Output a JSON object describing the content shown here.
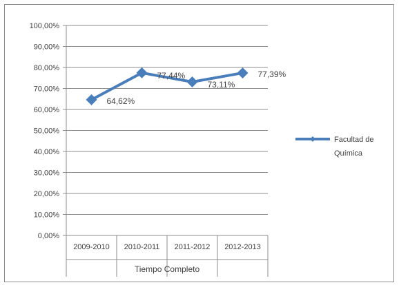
{
  "chart_data": {
    "type": "line",
    "categories": [
      "2009-2010",
      "2010-2011",
      "2011-2012",
      "2012-2013"
    ],
    "group_label": "Tiempo Completo",
    "series": [
      {
        "name": "Facultad de Química",
        "name_lines": [
          "Facultad de",
          "Química"
        ],
        "values": [
          64.62,
          77.44,
          73.11,
          77.39
        ],
        "labels": [
          "64,62%",
          "77,44%",
          "73,11%",
          "77,39%"
        ],
        "color": "#4a7ebb"
      }
    ],
    "yticks": [
      "0,00%",
      "10,00%",
      "20,00%",
      "30,00%",
      "40,00%",
      "50,00%",
      "60,00%",
      "70,00%",
      "80,00%",
      "90,00%",
      "100,00%"
    ],
    "ylim": [
      0,
      100
    ],
    "grid": true,
    "legend_position": "right"
  }
}
